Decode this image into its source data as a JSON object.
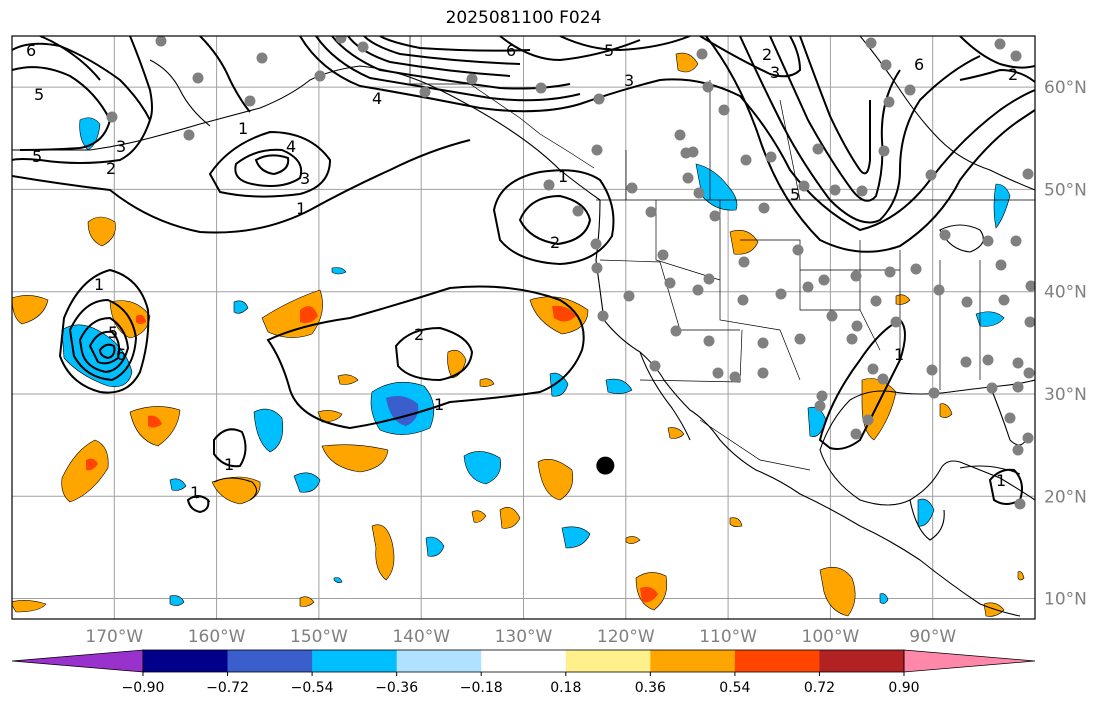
{
  "title": "2025081100 F024",
  "map": {
    "projection": "plate-carree",
    "lon_range": [
      -180,
      -80
    ],
    "lat_range": [
      8,
      65
    ],
    "gridlines": true,
    "lon_ticks": [
      "170°W",
      "160°W",
      "150°W",
      "140°W",
      "130°W",
      "120°W",
      "110°W",
      "100°W",
      "90°W"
    ],
    "lat_ticks": [
      "60°N",
      "50°N",
      "40°N",
      "30°N",
      "20°N",
      "10°N"
    ],
    "marker": {
      "lon": -122,
      "lat": 23,
      "color": "#000000"
    }
  },
  "colorbar": {
    "colors": [
      "#9932cc",
      "#00008b",
      "#3a5fcd",
      "#00bfff",
      "#b0e2ff",
      "#ffffff",
      "#fff08c",
      "#ffa500",
      "#ff4500",
      "#b22222",
      "#ff88aa"
    ],
    "tick_labels": [
      "−0.90",
      "−0.72",
      "−0.54",
      "−0.36",
      "−0.18",
      "0.18",
      "0.36",
      "0.54",
      "0.72",
      "0.90"
    ],
    "extend": "both"
  },
  "contour_labels": [
    "1",
    "2",
    "3",
    "4",
    "5",
    "6"
  ]
}
